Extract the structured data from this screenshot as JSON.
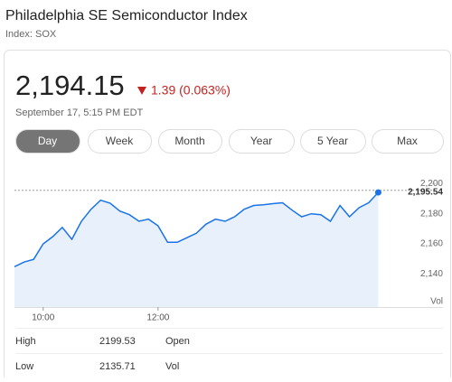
{
  "header": {
    "title": "Philadelphia SE Semiconductor Index",
    "subtitle": "Index: SOX"
  },
  "quote": {
    "price": "2,194.15",
    "change": "1.39 (0.063%)",
    "timestamp": "September 17, 5:15 PM EDT"
  },
  "tabs": [
    "Day",
    "Week",
    "Month",
    "Year",
    "5 Year",
    "Max"
  ],
  "stats": [
    [
      "High",
      "2199.53",
      "Open"
    ],
    [
      "Low",
      "2135.71",
      "Vol"
    ]
  ],
  "chart_data": {
    "type": "line",
    "color": "#1a73e8",
    "x": [
      "9:30",
      "9:40",
      "9:50",
      "10:00",
      "10:10",
      "10:20",
      "10:30",
      "10:40",
      "10:50",
      "11:00",
      "11:10",
      "11:20",
      "11:30",
      "11:40",
      "11:50",
      "12:00",
      "12:10",
      "12:20",
      "12:30",
      "12:40",
      "12:50",
      "13:00",
      "13:10",
      "13:20",
      "13:30",
      "13:40",
      "13:50",
      "14:00",
      "14:10",
      "14:20",
      "14:30",
      "14:40",
      "14:50",
      "15:00",
      "15:10",
      "15:20",
      "15:30",
      "15:40",
      "15:50"
    ],
    "values": [
      2144.8,
      2147.9,
      2149.7,
      2160,
      2164.8,
      2170.9,
      2163,
      2175,
      2183,
      2189,
      2187,
      2181.8,
      2179.4,
      2175,
      2176.4,
      2172,
      2161,
      2161,
      2164,
      2167,
      2173,
      2176.4,
      2175,
      2178,
      2183,
      2185.5,
      2186,
      2186.7,
      2187.3,
      2182.4,
      2178,
      2180,
      2179.4,
      2175,
      2185.5,
      2178,
      2184,
      2187.3,
      2194.15
    ],
    "xlim": [
      "9:30",
      "16:00"
    ],
    "xticks": [
      "10:00",
      "12:00"
    ],
    "ylim": [
      2118,
      2202
    ],
    "yticks": [
      {
        "value": 2140,
        "label": "2,140"
      },
      {
        "value": 2160,
        "label": "2,160"
      },
      {
        "value": 2180,
        "label": "2,180"
      },
      {
        "value": 2200,
        "label": "2,200"
      }
    ],
    "previous_close": {
      "value": 2195.54,
      "label": "2,195.54"
    },
    "volume_label": "Vol"
  }
}
